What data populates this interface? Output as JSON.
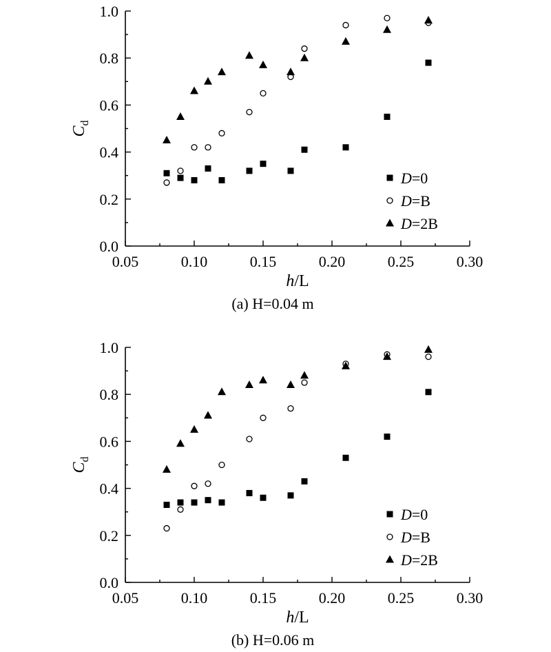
{
  "chart_data": [
    {
      "type": "scatter",
      "caption": {
        "prefix": "(a) ",
        "var": "H",
        "value": "=0.04 m"
      },
      "xlabel": {
        "var": "h",
        "rest": "/L"
      },
      "ylabel": {
        "var": "C",
        "sub": "d"
      },
      "xlim": [
        0.05,
        0.3
      ],
      "ylim": [
        0.0,
        1.0
      ],
      "xticks": [
        "0.05",
        "0.10",
        "0.15",
        "0.20",
        "0.25",
        "0.30"
      ],
      "yticks": [
        "0.0",
        "0.2",
        "0.4",
        "0.6",
        "0.8",
        "1.0"
      ],
      "grid": false,
      "legend_position": "lower-right",
      "series": [
        {
          "name_var": "D",
          "name_rest": "=0",
          "marker": "square",
          "x": [
            0.08,
            0.09,
            0.1,
            0.11,
            0.12,
            0.14,
            0.15,
            0.17,
            0.18,
            0.21,
            0.24,
            0.27
          ],
          "y": [
            0.31,
            0.29,
            0.28,
            0.33,
            0.28,
            0.32,
            0.35,
            0.32,
            0.41,
            0.42,
            0.55,
            0.78
          ]
        },
        {
          "name_var": "D",
          "name_rest": "=B",
          "marker": "circle",
          "x": [
            0.08,
            0.09,
            0.1,
            0.11,
            0.12,
            0.14,
            0.15,
            0.17,
            0.18,
            0.21,
            0.24,
            0.27
          ],
          "y": [
            0.27,
            0.32,
            0.42,
            0.42,
            0.48,
            0.57,
            0.65,
            0.72,
            0.84,
            0.94,
            0.97,
            0.95
          ]
        },
        {
          "name_var": "D",
          "name_rest": "=2B",
          "marker": "triangle",
          "x": [
            0.08,
            0.09,
            0.1,
            0.11,
            0.12,
            0.14,
            0.15,
            0.17,
            0.18,
            0.21,
            0.24,
            0.27
          ],
          "y": [
            0.45,
            0.55,
            0.66,
            0.7,
            0.74,
            0.81,
            0.77,
            0.74,
            0.8,
            0.87,
            0.92,
            0.96
          ]
        }
      ]
    },
    {
      "type": "scatter",
      "caption": {
        "prefix": "(b) ",
        "var": "H",
        "value": "=0.06 m"
      },
      "xlabel": {
        "var": "h",
        "rest": "/L"
      },
      "ylabel": {
        "var": "C",
        "sub": "d"
      },
      "xlim": [
        0.05,
        0.3
      ],
      "ylim": [
        0.0,
        1.0
      ],
      "xticks": [
        "0.05",
        "0.10",
        "0.15",
        "0.20",
        "0.25",
        "0.30"
      ],
      "yticks": [
        "0.0",
        "0.2",
        "0.4",
        "0.6",
        "0.8",
        "1.0"
      ],
      "grid": false,
      "legend_position": "lower-right",
      "series": [
        {
          "name_var": "D",
          "name_rest": "=0",
          "marker": "square",
          "x": [
            0.08,
            0.09,
            0.1,
            0.11,
            0.12,
            0.14,
            0.15,
            0.17,
            0.18,
            0.21,
            0.24,
            0.27
          ],
          "y": [
            0.33,
            0.34,
            0.34,
            0.35,
            0.34,
            0.38,
            0.36,
            0.37,
            0.43,
            0.53,
            0.62,
            0.81
          ]
        },
        {
          "name_var": "D",
          "name_rest": "=B",
          "marker": "circle",
          "x": [
            0.08,
            0.09,
            0.1,
            0.11,
            0.12,
            0.14,
            0.15,
            0.17,
            0.18,
            0.21,
            0.24,
            0.27
          ],
          "y": [
            0.23,
            0.31,
            0.41,
            0.42,
            0.5,
            0.61,
            0.7,
            0.74,
            0.85,
            0.93,
            0.97,
            0.96
          ]
        },
        {
          "name_var": "D",
          "name_rest": "=2B",
          "marker": "triangle",
          "x": [
            0.08,
            0.09,
            0.1,
            0.11,
            0.12,
            0.14,
            0.15,
            0.17,
            0.18,
            0.21,
            0.24,
            0.27
          ],
          "y": [
            0.48,
            0.59,
            0.65,
            0.71,
            0.81,
            0.84,
            0.86,
            0.84,
            0.88,
            0.92,
            0.96,
            0.99
          ]
        }
      ]
    }
  ]
}
